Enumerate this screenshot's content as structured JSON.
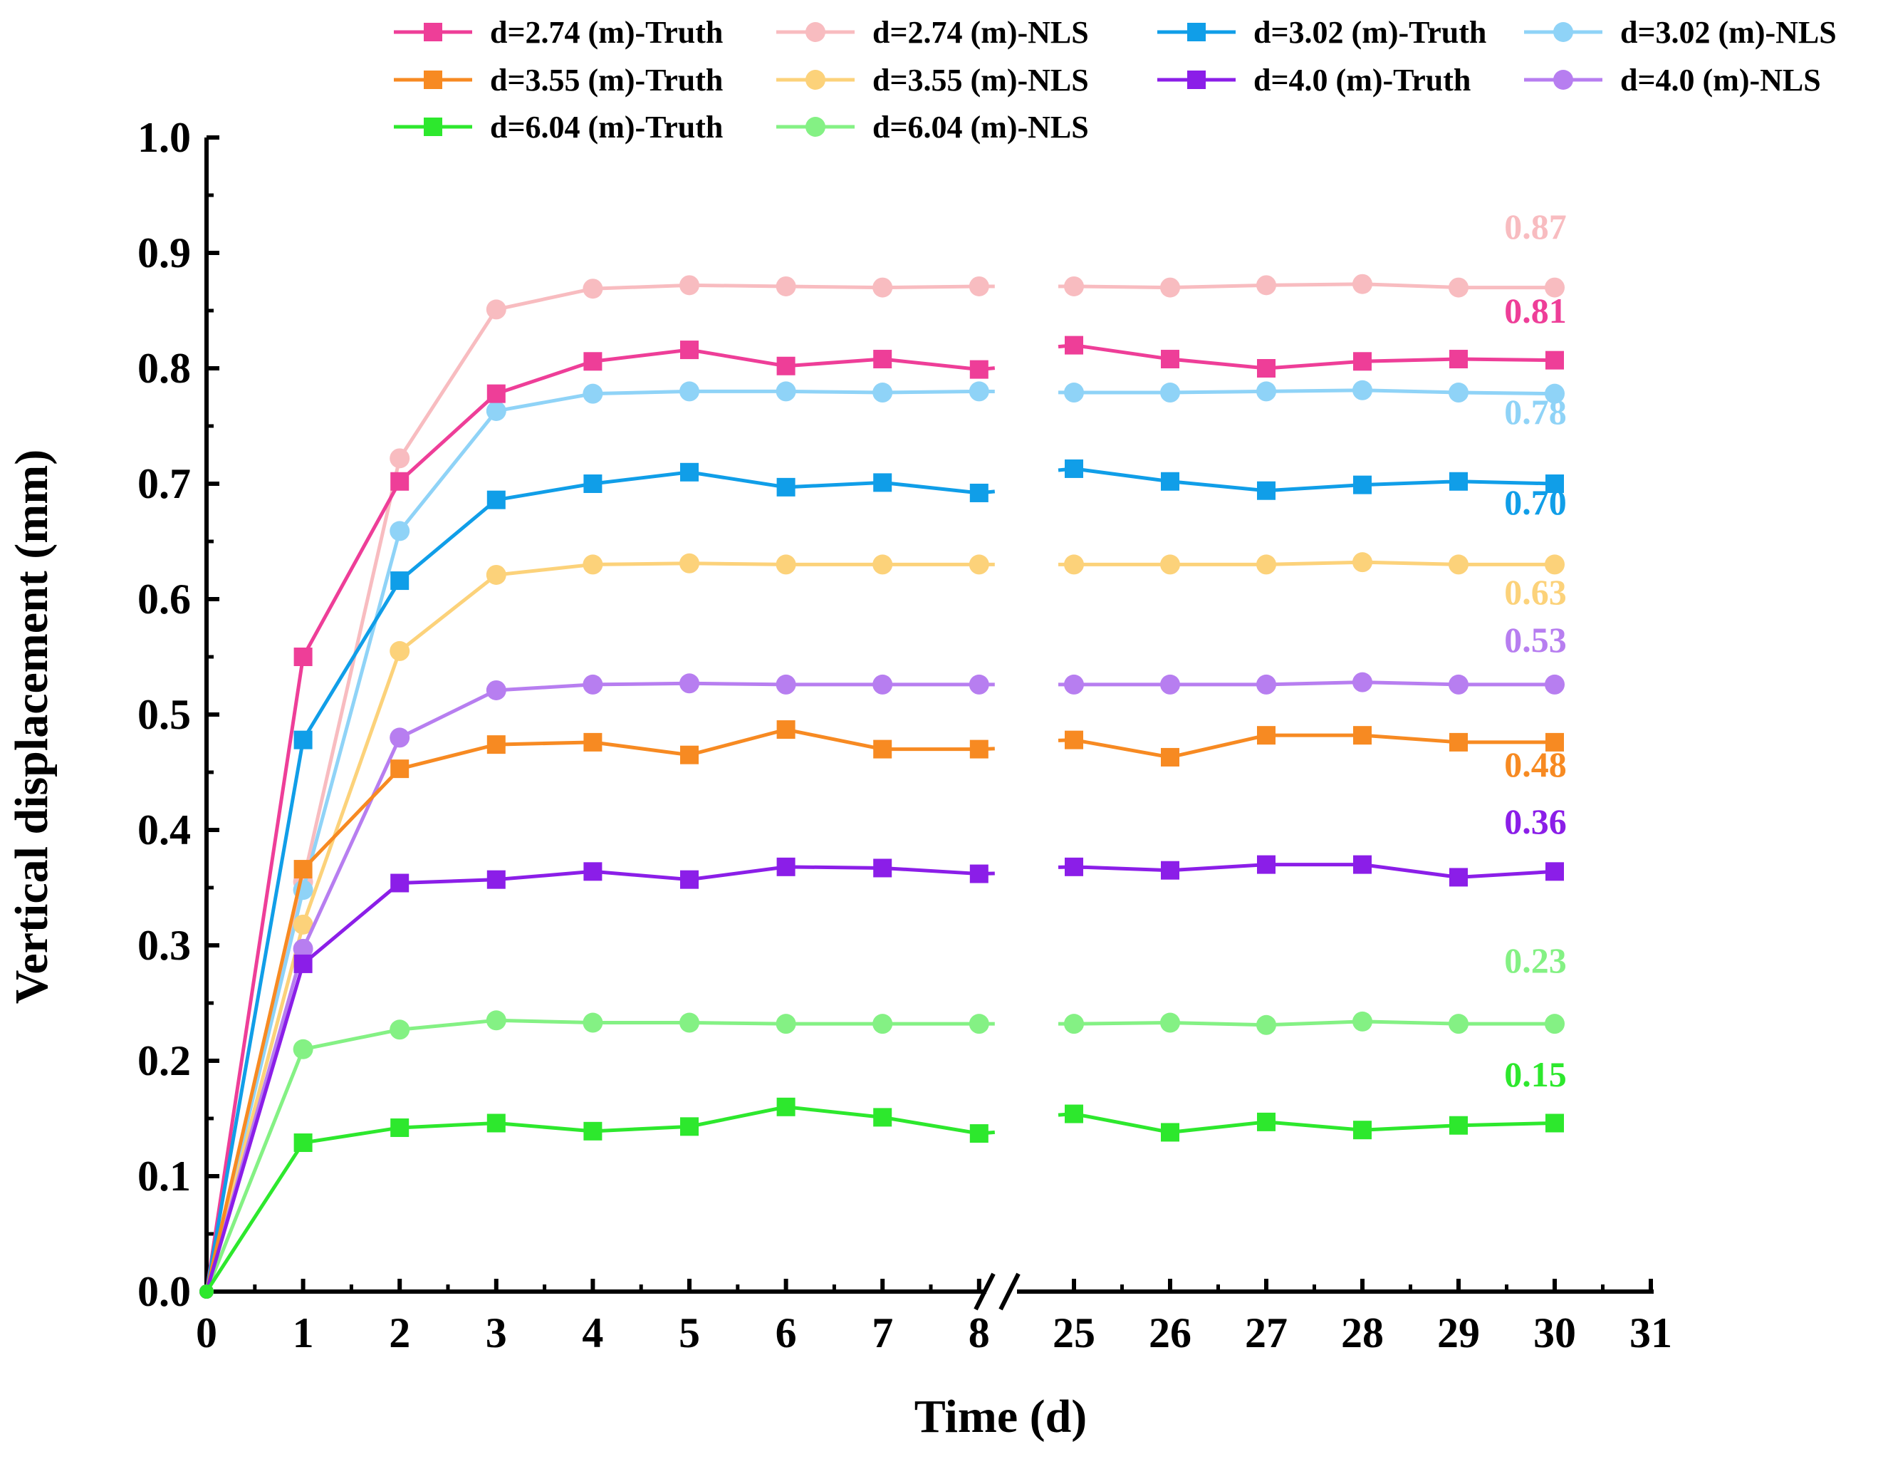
{
  "chart_data": {
    "type": "line",
    "xlabel": "Time (d)",
    "ylabel": "Vertical displacement (mm)",
    "ylim": [
      0,
      1.0
    ],
    "y_ticks": [
      "0.0",
      "0.1",
      "0.2",
      "0.3",
      "0.4",
      "0.5",
      "0.6",
      "0.7",
      "0.8",
      "0.9",
      "1.0"
    ],
    "x_ticks": [
      "0",
      "1",
      "2",
      "3",
      "4",
      "5",
      "6",
      "7",
      "8",
      "25",
      "26",
      "27",
      "28",
      "29",
      "30",
      "31"
    ],
    "x_axis_break": "between 8 and 25",
    "x": [
      0,
      1,
      2,
      3,
      4,
      5,
      6,
      7,
      8,
      25,
      26,
      27,
      28,
      29,
      30
    ],
    "legend_position": "top",
    "series": [
      {
        "name": "d=2.74 (m)-Truth",
        "color": "#ee3e98",
        "marker": "square",
        "values": [
          0,
          0.55,
          0.702,
          0.778,
          0.806,
          0.816,
          0.802,
          0.808,
          0.799,
          0.82,
          0.808,
          0.8,
          0.806,
          0.808,
          0.807
        ],
        "end_label": "0.81"
      },
      {
        "name": "d=2.74 (m)-NLS",
        "color": "#f8bcc0",
        "marker": "circle",
        "values": [
          0,
          0.355,
          0.722,
          0.851,
          0.869,
          0.872,
          0.871,
          0.87,
          0.871,
          0.871,
          0.87,
          0.872,
          0.873,
          0.87,
          0.87
        ],
        "end_label": "0.87"
      },
      {
        "name": "d=3.02 (m)-Truth",
        "color": "#109ee8",
        "marker": "square",
        "values": [
          0,
          0.478,
          0.616,
          0.686,
          0.7,
          0.71,
          0.697,
          0.701,
          0.692,
          0.713,
          0.702,
          0.694,
          0.699,
          0.702,
          0.7
        ],
        "end_label": "0.70"
      },
      {
        "name": "d=3.02 (m)-NLS",
        "color": "#8fd3f7",
        "marker": "circle",
        "values": [
          0,
          0.348,
          0.659,
          0.763,
          0.778,
          0.78,
          0.78,
          0.779,
          0.78,
          0.779,
          0.779,
          0.78,
          0.781,
          0.779,
          0.778
        ],
        "end_label": "0.78"
      },
      {
        "name": "d=3.55 (m)-Truth",
        "color": "#f78a22",
        "marker": "square",
        "values": [
          0,
          0.366,
          0.453,
          0.474,
          0.476,
          0.465,
          0.487,
          0.47,
          0.47,
          0.478,
          0.463,
          0.482,
          0.482,
          0.476,
          0.476
        ],
        "end_label": "0.48"
      },
      {
        "name": "d=3.55 (m)-NLS",
        "color": "#fcd27a",
        "marker": "circle",
        "values": [
          0,
          0.318,
          0.555,
          0.621,
          0.63,
          0.631,
          0.63,
          0.63,
          0.63,
          0.63,
          0.63,
          0.63,
          0.632,
          0.63,
          0.63
        ],
        "end_label": "0.63"
      },
      {
        "name": "d=4.0 (m)-Truth",
        "color": "#8b1ee8",
        "marker": "square",
        "values": [
          0,
          0.284,
          0.354,
          0.357,
          0.364,
          0.357,
          0.368,
          0.367,
          0.362,
          0.368,
          0.365,
          0.37,
          0.37,
          0.359,
          0.364
        ],
        "end_label": "0.36"
      },
      {
        "name": "d=4.0 (m)-NLS",
        "color": "#b77ef0",
        "marker": "circle",
        "values": [
          0,
          0.297,
          0.48,
          0.521,
          0.526,
          0.527,
          0.526,
          0.526,
          0.526,
          0.526,
          0.526,
          0.526,
          0.528,
          0.526,
          0.526
        ],
        "end_label": "0.53"
      },
      {
        "name": "d=6.04 (m)-Truth",
        "color": "#2de82d",
        "marker": "square",
        "values": [
          0,
          0.129,
          0.142,
          0.146,
          0.139,
          0.143,
          0.16,
          0.151,
          0.137,
          0.154,
          0.138,
          0.147,
          0.14,
          0.144,
          0.146
        ],
        "end_label": "0.15"
      },
      {
        "name": "d=6.04 (m)-NLS",
        "color": "#84f184",
        "marker": "circle",
        "values": [
          0,
          0.21,
          0.227,
          0.235,
          0.233,
          0.233,
          0.232,
          0.232,
          0.232,
          0.232,
          0.233,
          0.231,
          0.234,
          0.232,
          0.232
        ],
        "end_label": "0.23"
      }
    ]
  }
}
